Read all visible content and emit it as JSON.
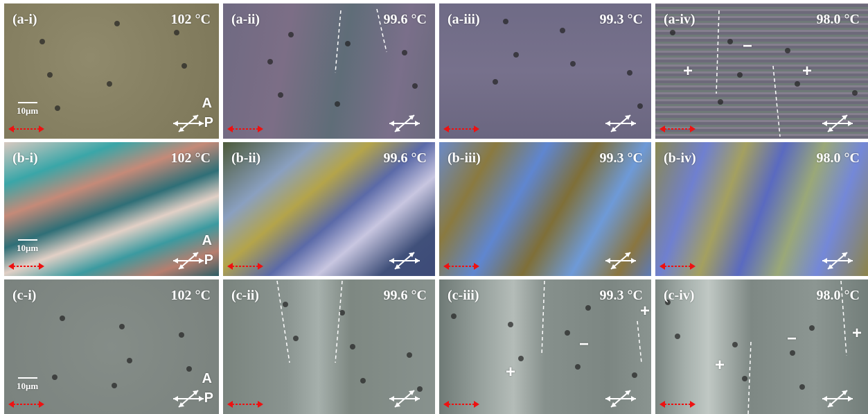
{
  "panels": [
    {
      "label": "(a-i)",
      "temperature": "102 °C",
      "scale_bar": "10μm",
      "analyzer": "A",
      "polarizer": "P"
    },
    {
      "label": "(a-ii)",
      "temperature": "99.6 °C"
    },
    {
      "label": "(a-iii)",
      "temperature": "99.3 °C"
    },
    {
      "label": "(a-iv)",
      "temperature": "98.0 °C",
      "signs": [
        "−",
        "+",
        "+"
      ]
    },
    {
      "label": "(b-i)",
      "temperature": "102 °C",
      "scale_bar": "10μm",
      "analyzer": "A",
      "polarizer": "P"
    },
    {
      "label": "(b-ii)",
      "temperature": "99.6 °C"
    },
    {
      "label": "(b-iii)",
      "temperature": "99.3 °C"
    },
    {
      "label": "(b-iv)",
      "temperature": "98.0 °C"
    },
    {
      "label": "(c-i)",
      "temperature": "102 °C",
      "scale_bar": "10μm",
      "analyzer": "A",
      "polarizer": "P"
    },
    {
      "label": "(c-ii)",
      "temperature": "99.6 °C"
    },
    {
      "label": "(c-iii)",
      "temperature": "99.3 °C",
      "signs": [
        "+",
        "−",
        "+"
      ]
    },
    {
      "label": "(c-iv)",
      "temperature": "98.0 °C",
      "signs": [
        "+",
        "−",
        "+"
      ]
    }
  ]
}
